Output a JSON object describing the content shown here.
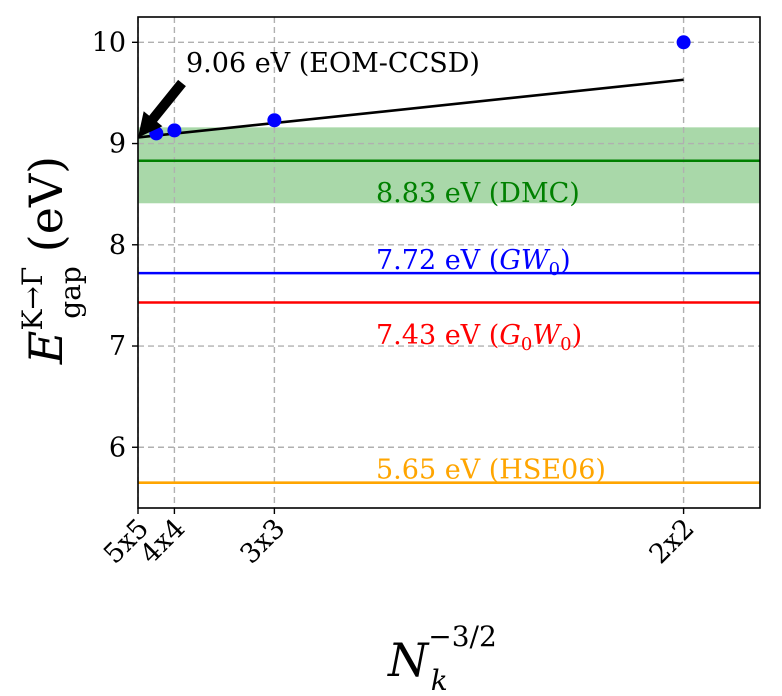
{
  "chart_data": {
    "type": "line",
    "title": "",
    "xlabel": {
      "base": "N",
      "sub": "k",
      "sup": "−3/2"
    },
    "ylabel": {
      "base": "E",
      "sub": "gap",
      "sup": "K→Γ",
      "unit": "(eV)"
    },
    "xlim": [
      0,
      0.095
    ],
    "ylim": [
      5.4,
      10.25
    ],
    "grid": true,
    "x_ticks": [
      {
        "value": 0.0,
        "label": "5x5"
      },
      {
        "value": 0.00556,
        "label": "4x4"
      },
      {
        "value": 0.02083,
        "label": "3x3"
      },
      {
        "value": 0.08333,
        "label": "2x2"
      }
    ],
    "y_ticks": [
      {
        "value": 6,
        "label": "6"
      },
      {
        "value": 7,
        "label": "7"
      },
      {
        "value": 8,
        "label": "8"
      },
      {
        "value": 9,
        "label": "9"
      },
      {
        "value": 10,
        "label": "10"
      }
    ],
    "scatter": {
      "name": "EOM-CCSD",
      "color": "#0000ff",
      "x": [
        0.00556,
        0.00556,
        0.02083,
        0.08333
      ],
      "y": [
        9.1,
        9.13,
        9.23,
        10.0
      ]
    },
    "fit_line": {
      "name": "extrapolation",
      "color": "#000000",
      "x": [
        0.0,
        0.08333
      ],
      "y": [
        9.06,
        9.63
      ]
    },
    "hlines": [
      {
        "name": "DMC",
        "value": 8.83,
        "color": "#008000",
        "label_value": "8.83 eV",
        "label_method": "(DMC)",
        "band": [
          8.41,
          9.16
        ],
        "band_color": "#a9d8a9"
      },
      {
        "name": "GW0",
        "value": 7.72,
        "color": "#0000ff",
        "label_value": "7.72 eV",
        "label_method_parts": [
          "(",
          "GW",
          "0",
          ")"
        ]
      },
      {
        "name": "G0W0",
        "value": 7.43,
        "color": "#ff0000",
        "label_value": "7.43 eV",
        "label_method_parts": [
          "(",
          "G",
          "0",
          "W",
          "0",
          ")"
        ]
      },
      {
        "name": "HSE06",
        "value": 5.65,
        "color": "#ffa500",
        "label_value": "5.65 eV",
        "label_method": "(HSE06)"
      }
    ],
    "annotation": {
      "text": "9.06 eV (EOM-CCSD)",
      "arrow_target": {
        "x": 0.0,
        "y": 9.06
      }
    }
  }
}
